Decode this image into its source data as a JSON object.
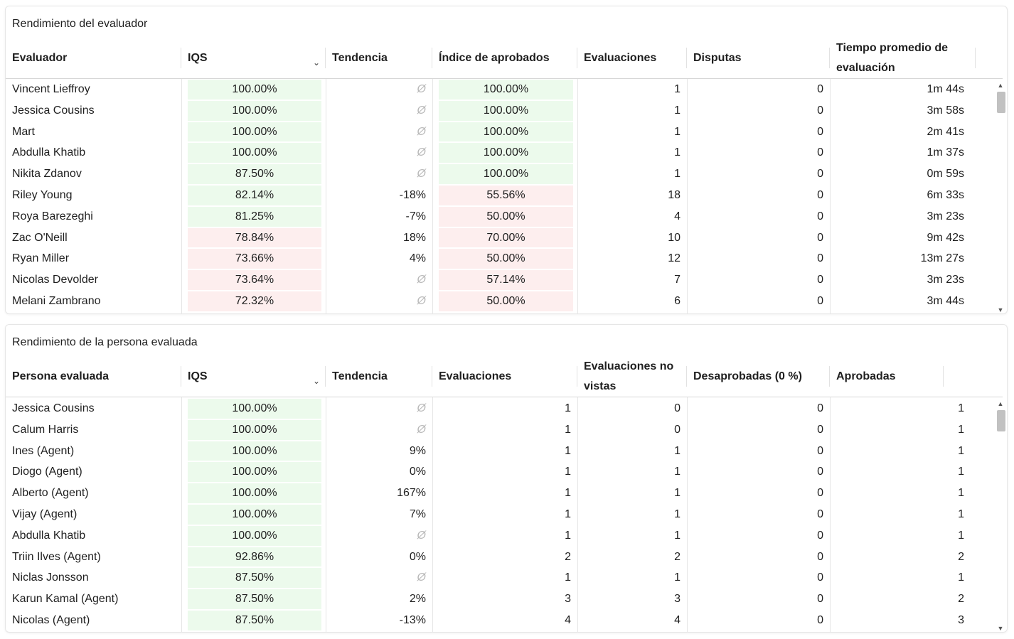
{
  "colors": {
    "good": "#ecfaec",
    "bad": "#fdeeee"
  },
  "evaluator": {
    "title": "Rendimiento del evaluador",
    "headers": [
      "Evaluador",
      "IQS",
      "Tendencia",
      "Índice de aprobados",
      "Evaluaciones",
      "Disputas",
      "Tiempo promedio de evaluación"
    ],
    "rows": [
      {
        "name": "Vincent Lieffroy",
        "iqs": "100.00%",
        "trend": "Ø",
        "approved": "100.00%",
        "evals": "1",
        "disputes": "0",
        "time": "1m 44s",
        "iqs_good": true,
        "appr_good": true
      },
      {
        "name": "Jessica Cousins",
        "iqs": "100.00%",
        "trend": "Ø",
        "approved": "100.00%",
        "evals": "1",
        "disputes": "0",
        "time": "3m 58s",
        "iqs_good": true,
        "appr_good": true
      },
      {
        "name": "Mart",
        "iqs": "100.00%",
        "trend": "Ø",
        "approved": "100.00%",
        "evals": "1",
        "disputes": "0",
        "time": "2m 41s",
        "iqs_good": true,
        "appr_good": true
      },
      {
        "name": "Abdulla Khatib",
        "iqs": "100.00%",
        "trend": "Ø",
        "approved": "100.00%",
        "evals": "1",
        "disputes": "0",
        "time": "1m 37s",
        "iqs_good": true,
        "appr_good": true
      },
      {
        "name": "Nikita Zdanov",
        "iqs": "87.50%",
        "trend": "Ø",
        "approved": "100.00%",
        "evals": "1",
        "disputes": "0",
        "time": "0m 59s",
        "iqs_good": true,
        "appr_good": true
      },
      {
        "name": "Riley Young",
        "iqs": "82.14%",
        "trend": "-18%",
        "approved": "55.56%",
        "evals": "18",
        "disputes": "0",
        "time": "6m 33s",
        "iqs_good": true,
        "appr_good": false
      },
      {
        "name": "Roya Barezeghi",
        "iqs": "81.25%",
        "trend": "-7%",
        "approved": "50.00%",
        "evals": "4",
        "disputes": "0",
        "time": "3m 23s",
        "iqs_good": true,
        "appr_good": false
      },
      {
        "name": "Zac O'Neill",
        "iqs": "78.84%",
        "trend": "18%",
        "approved": "70.00%",
        "evals": "10",
        "disputes": "0",
        "time": "9m 42s",
        "iqs_good": false,
        "appr_good": false
      },
      {
        "name": "Ryan Miller",
        "iqs": "73.66%",
        "trend": "4%",
        "approved": "50.00%",
        "evals": "12",
        "disputes": "0",
        "time": "13m 27s",
        "iqs_good": false,
        "appr_good": false
      },
      {
        "name": "Nicolas Devolder",
        "iqs": "73.64%",
        "trend": "Ø",
        "approved": "57.14%",
        "evals": "7",
        "disputes": "0",
        "time": "3m 23s",
        "iqs_good": false,
        "appr_good": false
      },
      {
        "name": "Melani Zambrano",
        "iqs": "72.32%",
        "trend": "Ø",
        "approved": "50.00%",
        "evals": "6",
        "disputes": "0",
        "time": "3m 44s",
        "iqs_good": false,
        "appr_good": false
      }
    ]
  },
  "evaluated": {
    "title": "Rendimiento de la persona evaluada",
    "headers": [
      "Persona evaluada",
      "IQS",
      "Tendencia",
      "Evaluaciones",
      "Evaluaciones no vistas",
      "Desaprobadas (0 %)",
      "Aprobadas"
    ],
    "rows": [
      {
        "name": "Jessica Cousins",
        "iqs": "100.00%",
        "trend": "Ø",
        "evals": "1",
        "unseen": "0",
        "failed": "0",
        "passed": "1"
      },
      {
        "name": "Calum Harris",
        "iqs": "100.00%",
        "trend": "Ø",
        "evals": "1",
        "unseen": "0",
        "failed": "0",
        "passed": "1"
      },
      {
        "name": "Ines (Agent)",
        "iqs": "100.00%",
        "trend": "9%",
        "evals": "1",
        "unseen": "1",
        "failed": "0",
        "passed": "1"
      },
      {
        "name": "Diogo (Agent)",
        "iqs": "100.00%",
        "trend": "0%",
        "evals": "1",
        "unseen": "1",
        "failed": "0",
        "passed": "1"
      },
      {
        "name": "Alberto (Agent)",
        "iqs": "100.00%",
        "trend": "167%",
        "evals": "1",
        "unseen": "1",
        "failed": "0",
        "passed": "1"
      },
      {
        "name": "Vijay (Agent)",
        "iqs": "100.00%",
        "trend": "7%",
        "evals": "1",
        "unseen": "1",
        "failed": "0",
        "passed": "1"
      },
      {
        "name": "Abdulla Khatib",
        "iqs": "100.00%",
        "trend": "Ø",
        "evals": "1",
        "unseen": "1",
        "failed": "0",
        "passed": "1"
      },
      {
        "name": "Triin Ilves (Agent)",
        "iqs": "92.86%",
        "trend": "0%",
        "evals": "2",
        "unseen": "2",
        "failed": "0",
        "passed": "2"
      },
      {
        "name": "Niclas Jonsson",
        "iqs": "87.50%",
        "trend": "Ø",
        "evals": "1",
        "unseen": "1",
        "failed": "0",
        "passed": "1"
      },
      {
        "name": "Karun Kamal (Agent)",
        "iqs": "87.50%",
        "trend": "2%",
        "evals": "3",
        "unseen": "3",
        "failed": "0",
        "passed": "2"
      },
      {
        "name": "Nicolas (Agent)",
        "iqs": "87.50%",
        "trend": "-13%",
        "evals": "4",
        "unseen": "4",
        "failed": "0",
        "passed": "3"
      }
    ]
  }
}
